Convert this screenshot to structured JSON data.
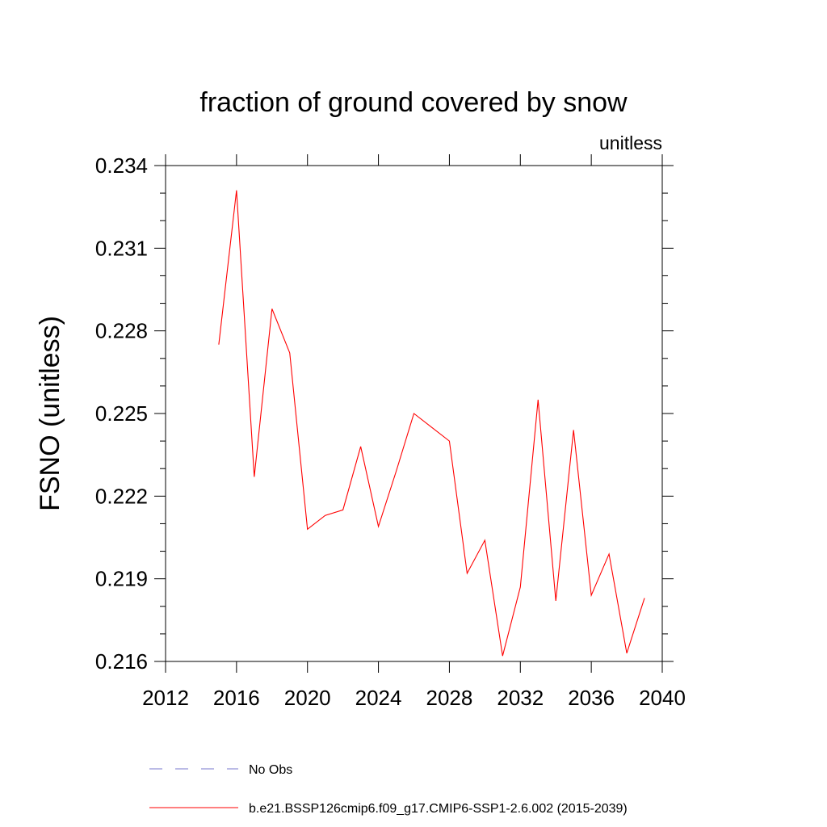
{
  "chart_data": {
    "type": "line",
    "title": "fraction of ground covered by snow",
    "units": "unitless",
    "ylabel": "FSNO  (unitless)",
    "xlabel": "",
    "xlim": [
      2012,
      2040
    ],
    "ylim": [
      0.216,
      0.234
    ],
    "x_ticks": [
      2012,
      2016,
      2020,
      2024,
      2028,
      2032,
      2036,
      2040
    ],
    "x_tick_labels": [
      "2012",
      "2016",
      "2020",
      "2024",
      "2028",
      "2032",
      "2036",
      "2040"
    ],
    "y_ticks": [
      0.216,
      0.219,
      0.222,
      0.225,
      0.228,
      0.231,
      0.234
    ],
    "y_tick_labels": [
      "0.216",
      "0.219",
      "0.222",
      "0.225",
      "0.228",
      "0.231",
      "0.234"
    ],
    "grid": false,
    "legend_position": "bottom",
    "series": [
      {
        "name": "b.e21.BSSP126cmip6.f09_g17.CMIP6-SSP1-2.6.002 (2015-2039)",
        "color": "#ff0000",
        "style": "solid",
        "x": [
          2015,
          2016,
          2017,
          2018,
          2019,
          2020,
          2021,
          2022,
          2023,
          2024,
          2025,
          2026,
          2027,
          2028,
          2029,
          2030,
          2031,
          2032,
          2033,
          2034,
          2035,
          2036,
          2037,
          2038,
          2039
        ],
        "y": [
          0.2275,
          0.2331,
          0.2227,
          0.2288,
          0.2272,
          0.2208,
          0.2213,
          0.2215,
          0.2238,
          0.2209,
          0.2229,
          0.225,
          0.2245,
          0.224,
          0.2192,
          0.2204,
          0.2162,
          0.2187,
          0.2255,
          0.2182,
          0.2244,
          0.2184,
          0.2199,
          0.2163,
          0.2183
        ]
      }
    ],
    "legend": [
      {
        "label": "No Obs",
        "color": "#7777cc",
        "style": "dashed"
      },
      {
        "label": "b.e21.BSSP126cmip6.f09_g17.CMIP6-SSP1-2.6.002 (2015-2039)",
        "color": "#ff0000",
        "style": "solid"
      }
    ]
  }
}
